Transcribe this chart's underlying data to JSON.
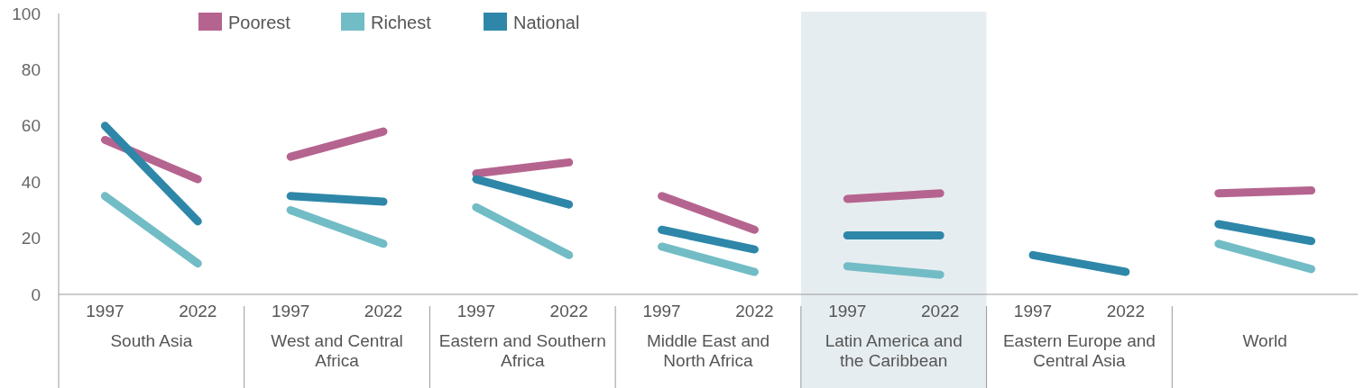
{
  "chart_data": {
    "type": "line",
    "categories": [
      "1997",
      "2022",
      "1997",
      "2022",
      "1997",
      "2022",
      "1997",
      "2022",
      "1997",
      "2022",
      "1997",
      "2022",
      null,
      null
    ],
    "series": [
      {
        "name": "Poorest",
        "color": "#b5648f",
        "values": [
          55,
          41,
          49,
          58,
          43,
          47,
          35,
          23,
          34,
          36,
          null,
          null,
          36,
          37
        ]
      },
      {
        "name": "Richest",
        "color": "#72bcc6",
        "values": [
          35,
          11,
          30,
          18,
          31,
          14,
          17,
          8,
          10,
          7,
          null,
          null,
          18,
          9
        ]
      },
      {
        "name": "National",
        "color": "#2e87a8",
        "values": [
          60,
          26,
          35,
          33,
          41,
          32,
          23,
          16,
          21,
          21,
          14,
          8,
          25,
          19
        ]
      }
    ],
    "annotations": [
      "South Asia",
      "West and Central Africa",
      "Eastern and Southern Africa",
      "Middle East and North Africa",
      "Latin America and the Caribbean",
      "Eastern Europe and Central Asia",
      "World"
    ],
    "ylim": [
      0,
      100
    ],
    "yticks": [
      0,
      20,
      40,
      60,
      80,
      100
    ],
    "grid": false,
    "legend": "top left",
    "marker": "none",
    "line_style": "solid"
  }
}
